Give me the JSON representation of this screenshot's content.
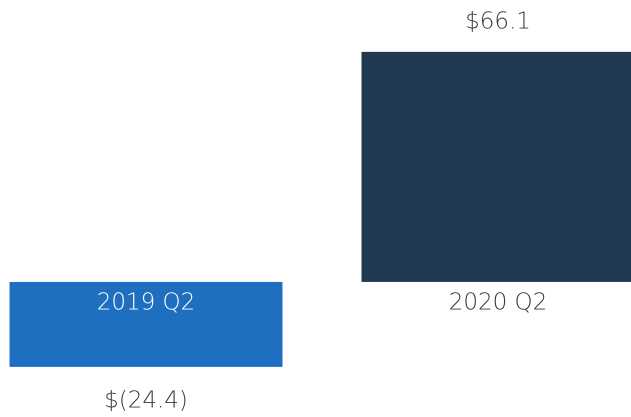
{
  "chart_data": {
    "type": "bar",
    "categories": [
      "2019 Q2",
      "2020 Q2"
    ],
    "values": [
      -24.4,
      66.1
    ],
    "value_labels": [
      "$(24.4)",
      "$66.1"
    ],
    "colors": [
      "#1f6fc0",
      "#213a52"
    ],
    "ylim": [
      -38.8,
      81
    ]
  }
}
